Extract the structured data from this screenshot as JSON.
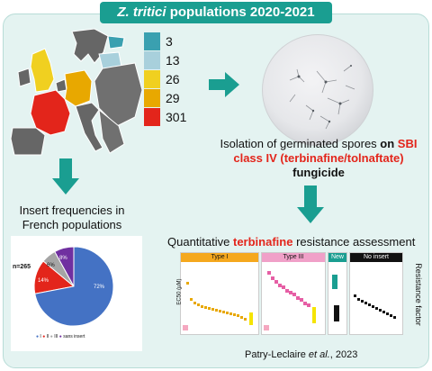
{
  "title": {
    "italic": "Z. tritici",
    "rest": " populations 2020-2021"
  },
  "map_legend": [
    {
      "value": "3",
      "color": "#3aa0b0"
    },
    {
      "value": "13",
      "color": "#a8d0dc"
    },
    {
      "value": "26",
      "color": "#f0d020"
    },
    {
      "value": "29",
      "color": "#e8a800"
    },
    {
      "value": "301",
      "color": "#e3251b"
    }
  ],
  "isolation": {
    "line1_pre": "Isolation of germinated spores ",
    "line1_bold": "on ",
    "line1_red": "SBI",
    "line2_red": "class IV (terbinafine/tolnaftate)",
    "line3_bold": "fungicide"
  },
  "insert_freq": {
    "line1": "Insert frequencies in",
    "line2": "French populations"
  },
  "pie": {
    "n_label": "n=265",
    "slice_labels": [
      "72%",
      "14%",
      "6%",
      "8%"
    ],
    "legend": [
      "I",
      "II",
      "III",
      "sans insert"
    ],
    "colors": [
      "#4472c4",
      "#e3251b",
      "#a5a5a5",
      "#7030a0"
    ]
  },
  "chart_data": {
    "type": "pie",
    "categories": [
      "I",
      "II",
      "III",
      "sans insert"
    ],
    "values": [
      14,
      6,
      8,
      72
    ],
    "n": 265
  },
  "assessment": {
    "pre": "Quantitative ",
    "red": "terbinafine",
    "post": " resistance assessment"
  },
  "plots": {
    "type1": "Type I",
    "type3": "Type III",
    "new": "New",
    "no_insert": "No insert",
    "ylabel_left": "EC50 (µM)",
    "ylabel_right": "Resistance factor"
  },
  "citation": {
    "pre": "Patry-Leclaire ",
    "italic": "et al.",
    "post": ", 2023"
  }
}
